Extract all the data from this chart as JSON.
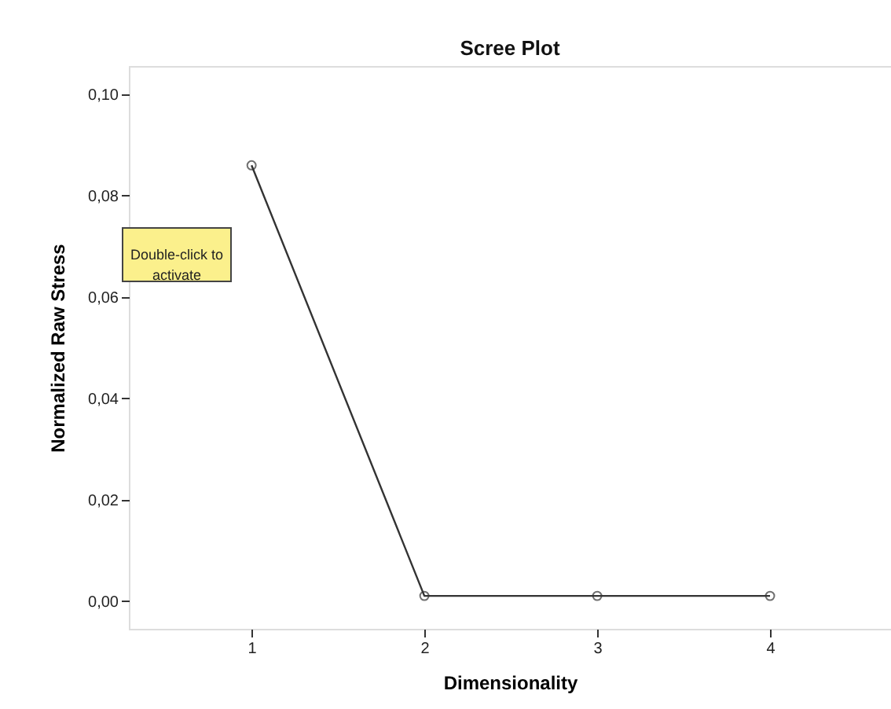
{
  "chart_data": {
    "type": "line",
    "title": "Scree Plot",
    "xlabel": "Dimensionality",
    "ylabel": "Normalized Raw Stress",
    "x": [
      1,
      2,
      3,
      4
    ],
    "series": [
      {
        "color": "#333333",
        "values": [
          0.086,
          0.001,
          0.001,
          0.001
        ]
      }
    ],
    "marker": "circle",
    "line_style": "solid",
    "xlim": [
      0.29,
      4.7
    ],
    "xticks": [
      1,
      2,
      3,
      4
    ],
    "ylim": [
      -0.0055,
      0.1056
    ],
    "yticks": [
      {
        "value": 0,
        "label": "0,00"
      },
      {
        "value": 0.02,
        "label": "0,02"
      },
      {
        "value": 0.04,
        "label": "0,04"
      },
      {
        "value": 0.06,
        "label": "0,06"
      },
      {
        "value": 0.08,
        "label": "0,08"
      },
      {
        "value": 0.1,
        "label": "0,10"
      }
    ],
    "grid": false,
    "annotations": [
      "Double-click to activate"
    ]
  }
}
